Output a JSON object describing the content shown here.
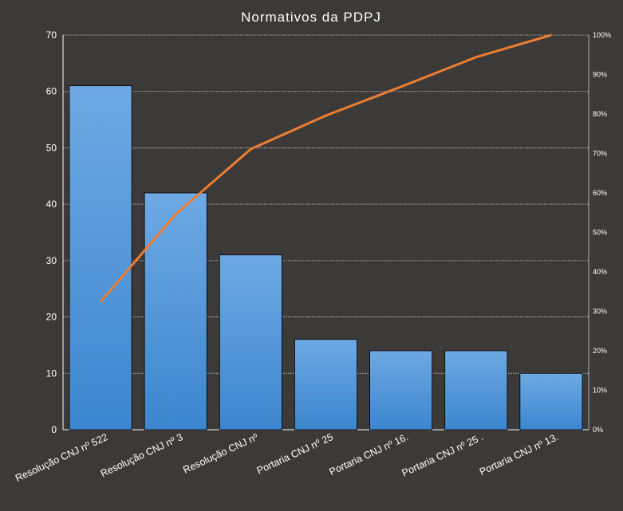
{
  "chart_data": {
    "type": "bar",
    "title": "Normativos da PDPJ",
    "categories": [
      "Resolução CNJ nº 522",
      "Resolução CNJ nº 3",
      "Resolução CNJ nº",
      "Portaria  CNJ nº 25",
      "Portaria  CNJ nº 16.",
      "Portaria  CNJ nº 25 .",
      "Portaria  CNJ nº 13."
    ],
    "series": [
      {
        "type": "bar",
        "axis": "left",
        "values": [
          61,
          42,
          31,
          16,
          14,
          14,
          10
        ],
        "color": "#4d93d9"
      },
      {
        "type": "line",
        "axis": "right",
        "values": [
          32.4,
          54.6,
          71.1,
          79.6,
          86.9,
          94.4,
          100
        ],
        "color": "#ed7d31"
      }
    ],
    "yticks": [
      "0",
      "10",
      "20",
      "30",
      "40",
      "50",
      "60",
      "70"
    ],
    "ylim": [
      0,
      70
    ],
    "y2ticks": [
      "0%",
      "10%",
      "20%",
      "30%",
      "40%",
      "50%",
      "60%",
      "70%",
      "80%",
      "90%",
      "100%"
    ],
    "y2lim": [
      0,
      100
    ],
    "grid": true,
    "xlabel": "",
    "ylabel": ""
  }
}
